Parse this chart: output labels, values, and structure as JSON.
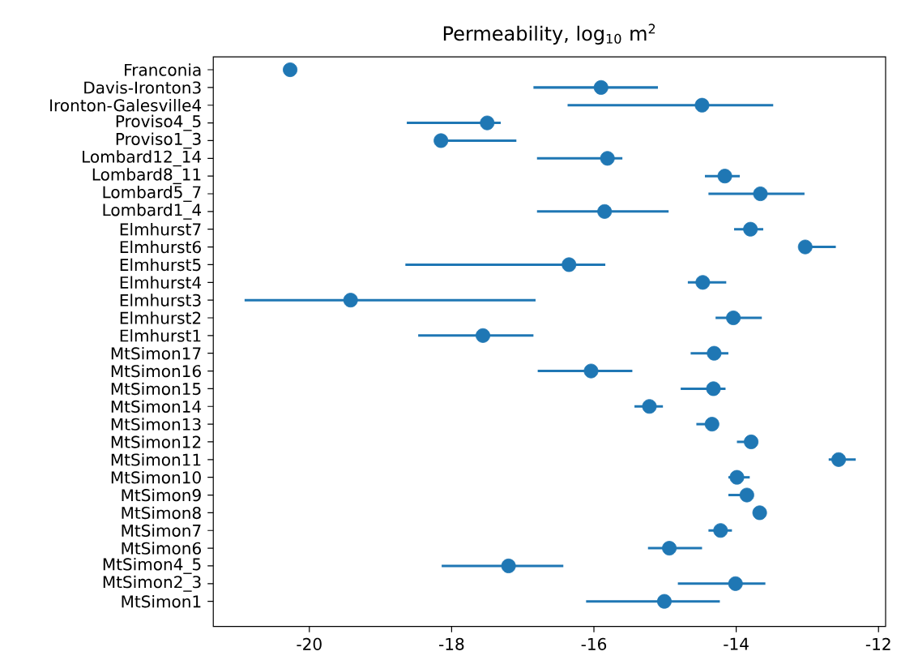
{
  "chart_data": {
    "type": "scatter",
    "orientation": "horizontal",
    "title": "Permeability, log$_{10}$ m$^{2}$",
    "categories": [
      "Franconia",
      "Davis-Ironton3",
      "Ironton-Galesville4",
      "Proviso4_5",
      "Proviso1_3",
      "Lombard12_14",
      "Lombard8_11",
      "Lombard5_7",
      "Lombard1_4",
      "Elmhurst7",
      "Elmhurst6",
      "Elmhurst5",
      "Elmhurst4",
      "Elmhurst3",
      "Elmhurst2",
      "Elmhurst1",
      "MtSimon17",
      "MtSimon16",
      "MtSimon15",
      "MtSimon14",
      "MtSimon13",
      "MtSimon12",
      "MtSimon11",
      "MtSimon10",
      "MtSimon9",
      "MtSimon8",
      "MtSimon7",
      "MtSimon6",
      "MtSimon4_5",
      "MtSimon2_3",
      "MtSimon1"
    ],
    "values": [
      -20.27,
      -15.9,
      -14.48,
      -17.5,
      -18.15,
      -15.81,
      -14.16,
      -13.66,
      -15.85,
      -13.8,
      -13.03,
      -16.35,
      -14.47,
      -19.42,
      -14.04,
      -17.56,
      -14.31,
      -16.04,
      -14.32,
      -15.22,
      -14.34,
      -13.79,
      -12.56,
      -13.99,
      -13.85,
      -13.67,
      -14.22,
      -14.94,
      -17.2,
      -14.01,
      -15.01
    ],
    "errors": [
      null,
      [
        -16.85,
        -15.1
      ],
      [
        -16.37,
        -13.48
      ],
      [
        -18.63,
        -17.31
      ],
      [
        -18.15,
        -17.09
      ],
      [
        -16.8,
        -15.6
      ],
      [
        -14.44,
        -13.95
      ],
      [
        -14.39,
        -13.04
      ],
      [
        -16.8,
        -14.95
      ],
      [
        -14.03,
        -13.62
      ],
      [
        -13.03,
        -12.6
      ],
      [
        -18.65,
        -15.84
      ],
      [
        -14.68,
        -14.14
      ],
      [
        -20.91,
        -16.82
      ],
      [
        -14.29,
        -13.64
      ],
      [
        -18.47,
        -16.85
      ],
      [
        -14.64,
        -14.11
      ],
      [
        -16.79,
        -15.46
      ],
      [
        -14.78,
        -14.15
      ],
      [
        -15.43,
        -15.03
      ],
      [
        -14.56,
        -14.34
      ],
      [
        -13.99,
        -13.79
      ],
      [
        -12.7,
        -12.32
      ],
      [
        -14.11,
        -13.81
      ],
      [
        -14.11,
        -13.76
      ],
      null,
      [
        -14.39,
        -14.06
      ],
      [
        -15.24,
        -14.48
      ],
      [
        -18.14,
        -16.43
      ],
      [
        -14.82,
        -13.59
      ],
      [
        -16.11,
        -14.23
      ]
    ],
    "color": "#1f77b4",
    "marker": "circle",
    "xlim": [
      -21.35,
      -11.9
    ],
    "xticks": [
      -20,
      -18,
      -16,
      -14,
      -12
    ]
  }
}
